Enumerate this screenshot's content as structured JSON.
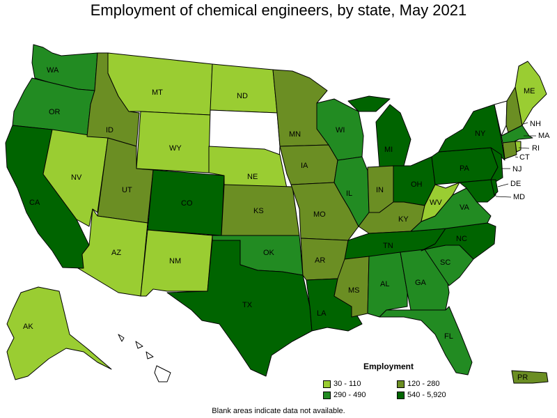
{
  "title": "Employment of chemical engineers, by state, May 2021",
  "note": "Blank areas indicate data not available.",
  "legend": {
    "title": "Employment",
    "items": [
      {
        "label": "30 - 110",
        "color": "#9acd32"
      },
      {
        "label": "120 - 280",
        "color": "#6b8e23"
      },
      {
        "label": "290 - 490",
        "color": "#228b22"
      },
      {
        "label": "540 - 5,920",
        "color": "#006400"
      }
    ]
  },
  "colors": {
    "blank": "#ffffff",
    "border": "#000000"
  },
  "states": {
    "WA": "290 - 490",
    "OR": "290 - 490",
    "CA": "540 - 5,920",
    "NV": "30 - 110",
    "ID": "120 - 280",
    "MT": "30 - 110",
    "WY": "30 - 110",
    "UT": "120 - 280",
    "AZ": "30 - 110",
    "CO": "540 - 5,920",
    "NM": "30 - 110",
    "ND": "30 - 110",
    "SD": "",
    "NE": "30 - 110",
    "KS": "120 - 280",
    "OK": "290 - 490",
    "TX": "540 - 5,920",
    "MN": "120 - 280",
    "IA": "120 - 280",
    "MO": "120 - 280",
    "AR": "120 - 280",
    "LA": "540 - 5,920",
    "WI": "290 - 490",
    "IL": "290 - 490",
    "MI": "540 - 5,920",
    "IN": "120 - 280",
    "OH": "540 - 5,920",
    "KY": "120 - 280",
    "TN": "540 - 5,920",
    "MS": "120 - 280",
    "AL": "290 - 490",
    "GA": "290 - 490",
    "FL": "290 - 490",
    "SC": "290 - 490",
    "NC": "540 - 5,920",
    "VA": "290 - 490",
    "WV": "30 - 110",
    "PA": "540 - 5,920",
    "NY": "540 - 5,920",
    "ME": "30 - 110",
    "VT": "",
    "NH": "120 - 280",
    "MA": "290 - 490",
    "RI": "30 - 110",
    "CT": "120 - 280",
    "NJ": "540 - 5,920",
    "DE": "540 - 5,920",
    "MD": "540 - 5,920",
    "AK": "30 - 110",
    "HI": "",
    "PR": "120 - 280"
  },
  "labels": {
    "WA": "WA",
    "OR": "OR",
    "CA": "CA",
    "NV": "NV",
    "ID": "ID",
    "MT": "MT",
    "WY": "WY",
    "UT": "UT",
    "AZ": "AZ",
    "CO": "CO",
    "NM": "NM",
    "ND": "ND",
    "NE": "NE",
    "KS": "KS",
    "OK": "OK",
    "TX": "TX",
    "MN": "MN",
    "IA": "IA",
    "MO": "MO",
    "AR": "AR",
    "LA": "LA",
    "WI": "WI",
    "IL": "IL",
    "MI": "MI",
    "IN": "IN",
    "OH": "OH",
    "KY": "KY",
    "TN": "TN",
    "MS": "MS",
    "AL": "AL",
    "GA": "GA",
    "FL": "FL",
    "SC": "SC",
    "NC": "NC",
    "VA": "VA",
    "WV": "WV",
    "PA": "PA",
    "NY": "NY",
    "ME": "ME",
    "NH": "NH",
    "MA": "MA",
    "RI": "RI",
    "CT": "CT",
    "NJ": "NJ",
    "DE": "DE",
    "MD": "MD",
    "AK": "AK",
    "PR": "PR"
  }
}
